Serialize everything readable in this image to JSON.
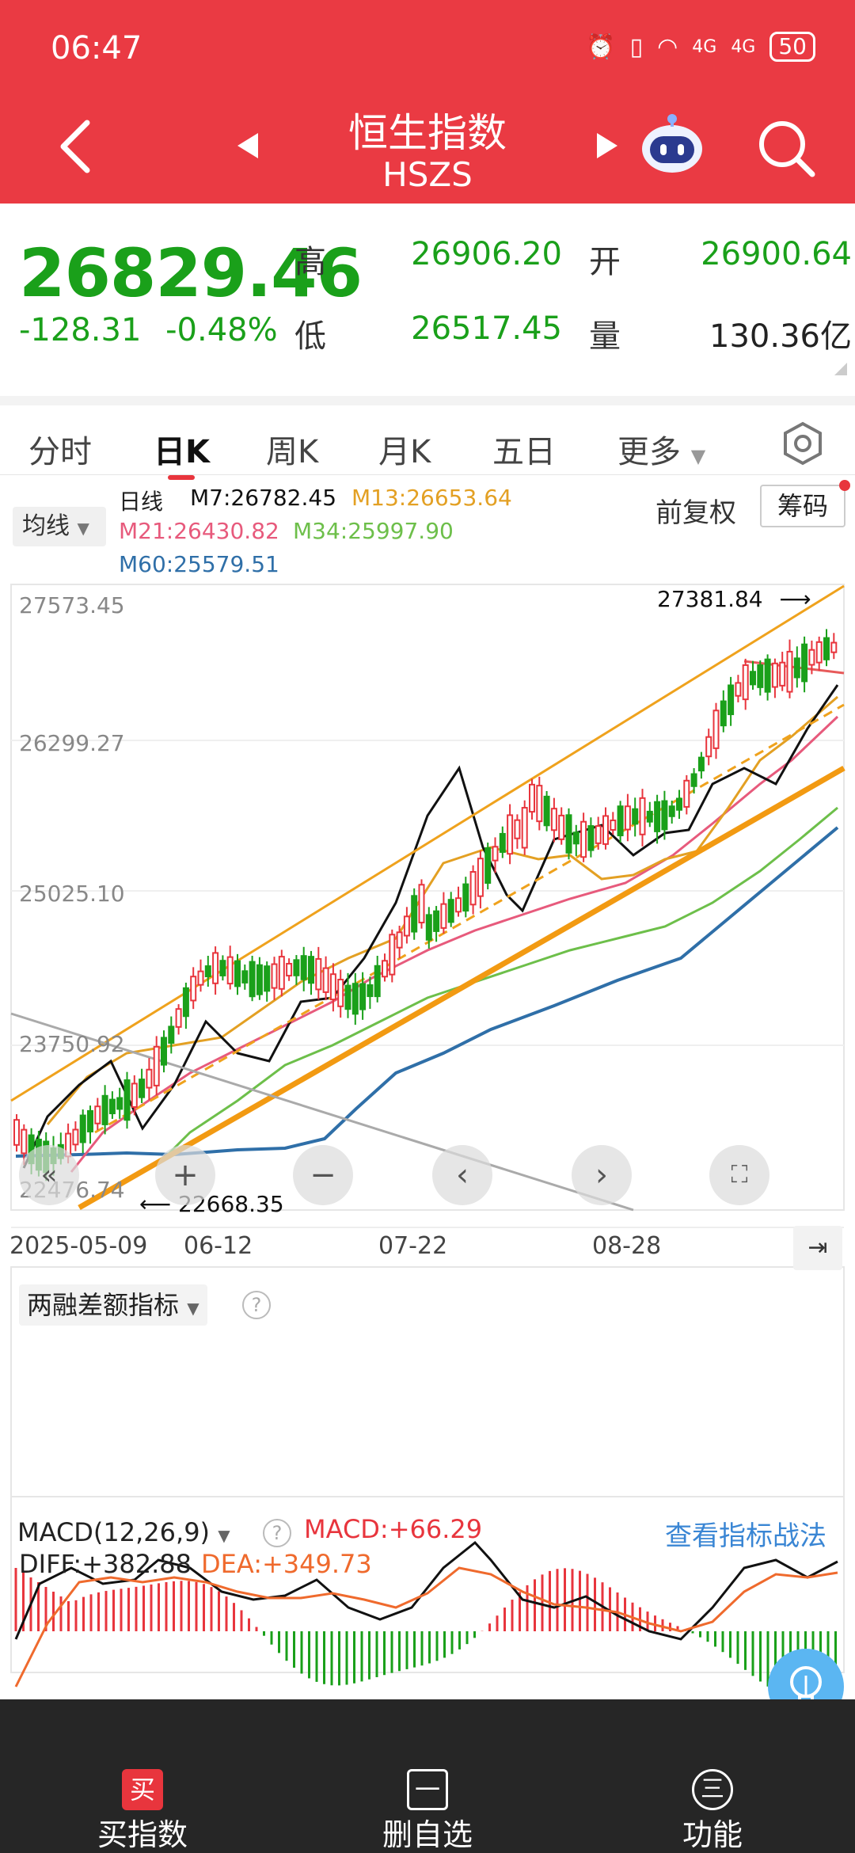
{
  "status": {
    "time": "06:47",
    "battery": "50",
    "net1": "4G",
    "net2": "4G"
  },
  "header": {
    "title_cn": "恒生指数",
    "title_en": "HSZS"
  },
  "quote": {
    "price": "26829.46",
    "change": "-128.31",
    "change_pct": "-0.48%",
    "high_label": "高",
    "high": "26906.20",
    "low_label": "低",
    "low": "26517.45",
    "open_label": "开",
    "open": "26900.64",
    "volume_label": "量",
    "volume": "130.36亿"
  },
  "tabs": [
    {
      "label": "分时"
    },
    {
      "label": "日K"
    },
    {
      "label": "周K"
    },
    {
      "label": "月K"
    },
    {
      "label": "五日"
    },
    {
      "label": "更多"
    }
  ],
  "ma_legend": {
    "button": "均线",
    "title": "日线",
    "m7": "M7:26782.45",
    "m13": "M13:26653.64",
    "m21": "M21:26430.82",
    "m34": "M34:25997.90",
    "m60": "M60:25579.51",
    "adjust": "前复权",
    "chips": "筹码"
  },
  "kline": {
    "y_labels": [
      "27573.45",
      "26299.27",
      "25025.10",
      "23750.92",
      "22476.74"
    ],
    "x_labels": [
      "2025-05-09",
      "06-12",
      "07-22",
      "08-28"
    ],
    "high_mark": "27381.84",
    "low_mark": "22668.35"
  },
  "indicator1": {
    "label": "两融差额指标"
  },
  "macd": {
    "label": "MACD(12,26,9)",
    "macd": "MACD:+66.29",
    "diff": "DIFF:+382.88",
    "dea": "DEA:+349.73",
    "strategy_link": "查看指标战法"
  },
  "bottom_nav": [
    {
      "label": "买指数",
      "icon_char": "买"
    },
    {
      "label": "删自选",
      "icon_char": "一"
    },
    {
      "label": "功能",
      "icon_char": "三"
    }
  ],
  "colors": {
    "header": "#ea3a43",
    "up": "#e8353d",
    "down": "#1aa01a",
    "m7": "#111111",
    "m13": "#e3a023",
    "m21": "#e75a7c",
    "m34": "#6dbf4a",
    "m60": "#2f6fa8"
  },
  "icons": [
    "back-arrow-icon",
    "prev-icon",
    "next-icon",
    "robot-icon",
    "search-icon",
    "settings-hex-icon",
    "help-icon",
    "lightbulb-icon"
  ]
}
